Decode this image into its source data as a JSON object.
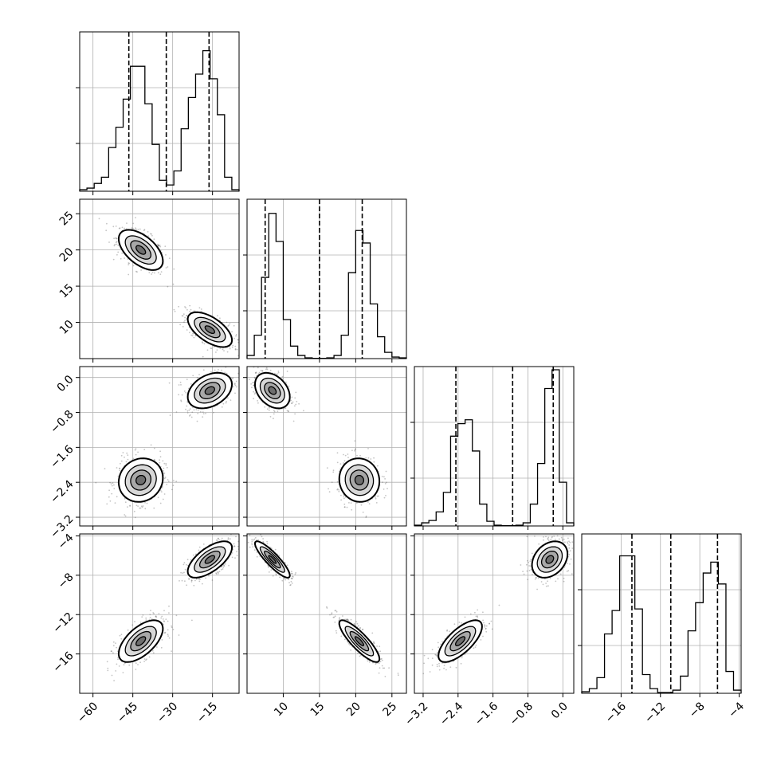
{
  "chart_data": {
    "type": "corner",
    "grid": true,
    "parameters": [
      {
        "range": [
          -65,
          -5
        ],
        "ticks": [
          -60,
          -45,
          -30,
          -15
        ],
        "tick_labels": [
          "−60",
          "−45",
          "−30",
          "−15"
        ],
        "quantiles": [
          -46.5,
          -32.4,
          -16.3
        ],
        "hist_bins": [
          0.01,
          0.02,
          0.05,
          0.09,
          0.28,
          0.41,
          0.59,
          0.8,
          0.8,
          0.56,
          0.3,
          0.07,
          0.04,
          0.13,
          0.4,
          0.6,
          0.75,
          0.9,
          0.72,
          0.49,
          0.09,
          0.01
        ]
      },
      {
        "range": [
          5,
          27
        ],
        "ticks": [
          10,
          15,
          20,
          25
        ],
        "tick_labels": [
          "10",
          "15",
          "20",
          "25"
        ],
        "quantiles": [
          7.5,
          15.0,
          20.9
        ],
        "hist_bins": [
          0.02,
          0.15,
          0.52,
          0.93,
          0.75,
          0.25,
          0.08,
          0.02,
          0.005,
          0.002,
          0.002,
          0.005,
          0.02,
          0.15,
          0.55,
          0.82,
          0.74,
          0.35,
          0.14,
          0.04,
          0.01,
          0.005
        ]
      },
      {
        "range": [
          -3.4,
          0.25
        ],
        "ticks": [
          -3.2,
          -2.4,
          -1.6,
          -0.8,
          0.0
        ],
        "tick_labels": [
          "−3.2",
          "−2.4",
          "−1.6",
          "−0.8",
          "0.0"
        ],
        "quantiles": [
          -2.45,
          -1.15,
          -0.22
        ],
        "hist_bins": [
          0.005,
          0.02,
          0.035,
          0.09,
          0.215,
          0.575,
          0.655,
          0.68,
          0.48,
          0.14,
          0.03,
          0.005,
          0.002,
          0.002,
          0.005,
          0.02,
          0.14,
          0.4,
          0.88,
          1.0,
          0.28,
          0.02
        ]
      },
      {
        "range": [
          -20,
          -3.8
        ],
        "ticks": [
          -16,
          -12,
          -8,
          -4
        ],
        "tick_labels": [
          "−16",
          "−12",
          "−8",
          "−4"
        ],
        "quantiles": [
          -14.9,
          -10.95,
          -6.2
        ],
        "hist_bins": [
          0.01,
          0.03,
          0.1,
          0.38,
          0.53,
          0.88,
          0.88,
          0.54,
          0.12,
          0.03,
          0.005,
          0.005,
          0.02,
          0.11,
          0.4,
          0.58,
          0.77,
          0.84,
          0.7,
          0.14,
          0.02
        ]
      }
    ],
    "pairs": [
      {
        "x": 0,
        "y": 1,
        "clusters": [
          {
            "mean": [
              -42,
              20
            ],
            "sd": [
              4.5,
              1.5
            ],
            "rho": -0.55
          },
          {
            "mean": [
              -16,
              9
            ],
            "sd": [
              4.5,
              1.3
            ],
            "rho": -0.6
          }
        ]
      },
      {
        "x": 0,
        "y": 2,
        "clusters": [
          {
            "mean": [
              -42,
              -2.35
            ],
            "sd": [
              4.5,
              0.27
            ],
            "rho": 0.1
          },
          {
            "mean": [
              -16,
              -0.3
            ],
            "sd": [
              4.5,
              0.22
            ],
            "rho": 0.35
          }
        ]
      },
      {
        "x": 1,
        "y": 2,
        "clusters": [
          {
            "mean": [
              8.5,
              -0.3
            ],
            "sd": [
              1.3,
              0.22
            ],
            "rho": -0.35
          },
          {
            "mean": [
              20.5,
              -2.35
            ],
            "sd": [
              1.5,
              0.27
            ],
            "rho": -0.05
          }
        ]
      },
      {
        "x": 0,
        "y": 3,
        "clusters": [
          {
            "mean": [
              -42,
              -14.7
            ],
            "sd": [
              4.5,
              1.15
            ],
            "rho": 0.6
          },
          {
            "mean": [
              -16,
              -6.4
            ],
            "sd": [
              4.5,
              1.0
            ],
            "rho": 0.65
          }
        ]
      },
      {
        "x": 1,
        "y": 3,
        "clusters": [
          {
            "mean": [
              8.5,
              -6.4
            ],
            "sd": [
              1.3,
              1.0
            ],
            "rho": -0.88
          },
          {
            "mean": [
              20.5,
              -14.7
            ],
            "sd": [
              1.5,
              1.15
            ],
            "rho": -0.85
          }
        ]
      },
      {
        "x": 2,
        "y": 3,
        "clusters": [
          {
            "mean": [
              -2.35,
              -14.7
            ],
            "sd": [
              0.27,
              1.15
            ],
            "rho": 0.7
          },
          {
            "mean": [
              -0.3,
              -6.4
            ],
            "sd": [
              0.22,
              1.0
            ],
            "rho": 0.3
          }
        ]
      }
    ]
  }
}
